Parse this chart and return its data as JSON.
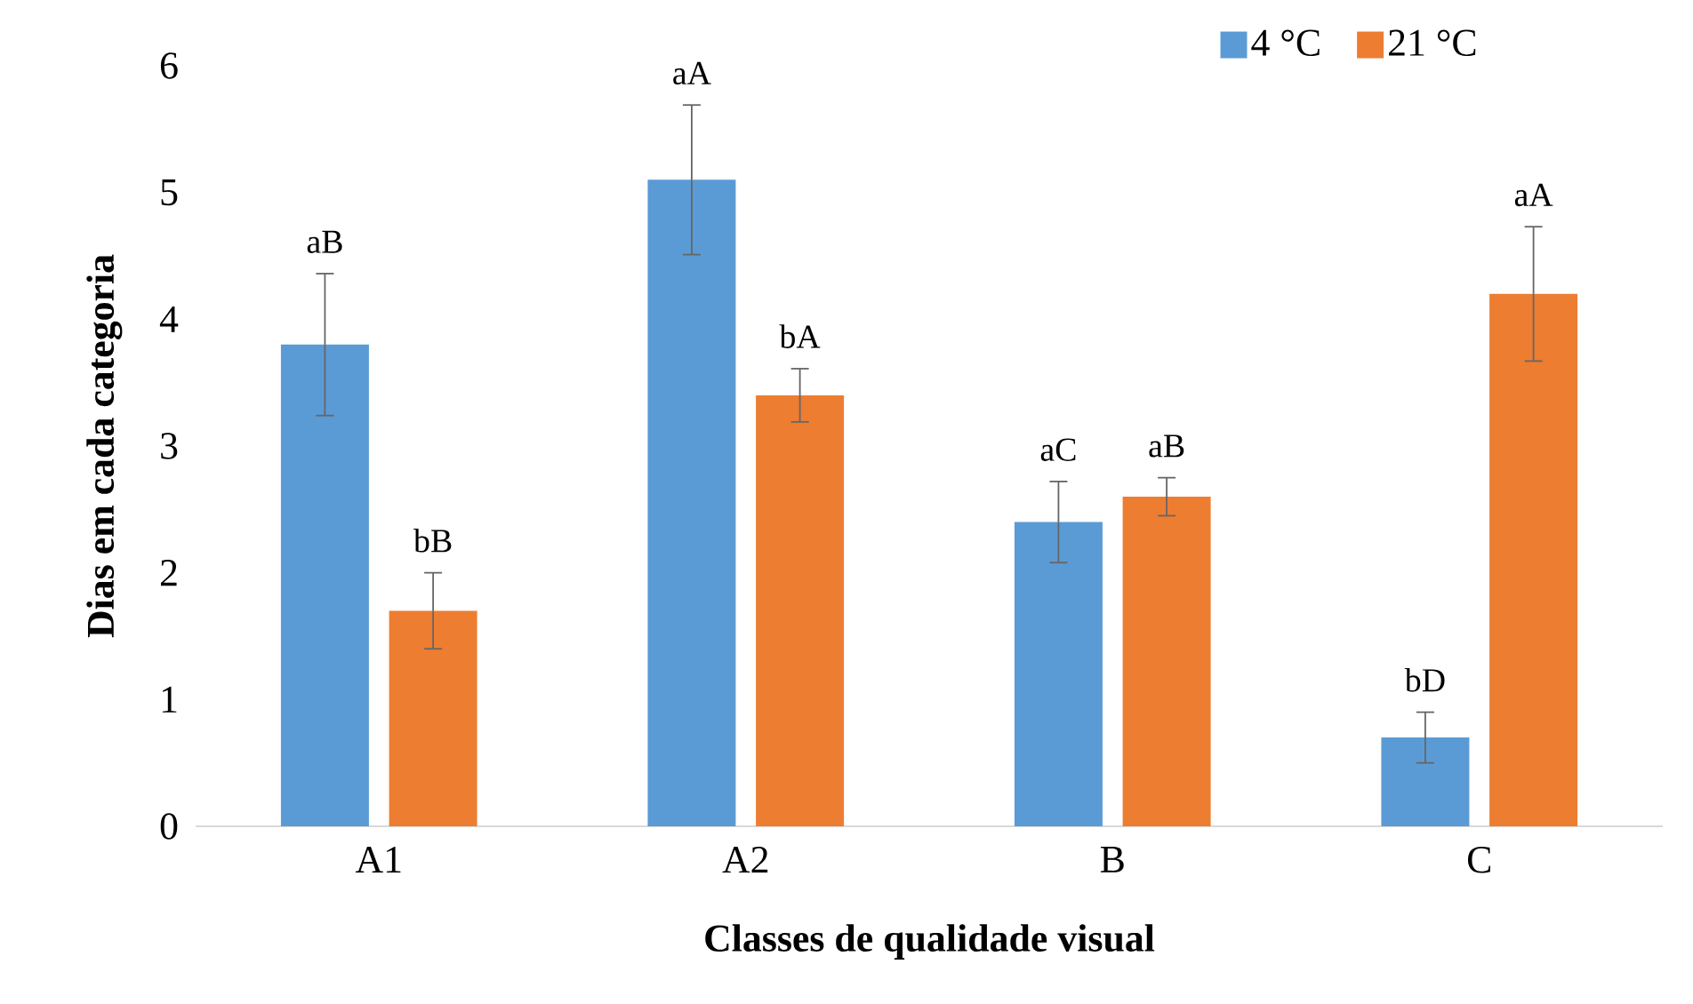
{
  "chart_data": {
    "type": "bar",
    "xlabel": "Classes de qualidade visual",
    "ylabel": "Dias em cada categoria",
    "categories": [
      "A1",
      "A2",
      "B",
      "C"
    ],
    "series": [
      {
        "name": "4 °C",
        "color": "#5b9bd5",
        "values": [
          3.8,
          5.1,
          2.4,
          0.7
        ],
        "errors": [
          0.56,
          0.59,
          0.32,
          0.2
        ]
      },
      {
        "name": "21 °C",
        "color": "#ed7d31",
        "values": [
          1.7,
          3.4,
          2.6,
          4.2
        ],
        "errors": [
          0.3,
          0.21,
          0.15,
          0.53
        ]
      }
    ],
    "ylim": [
      0,
      6
    ],
    "yticks": [
      0,
      1,
      2,
      3,
      4,
      5,
      6
    ],
    "legend": "top right",
    "annotations": [
      "aB",
      "bB",
      "aA",
      "bA",
      "aC",
      "aB",
      "bD",
      "aA"
    ]
  }
}
